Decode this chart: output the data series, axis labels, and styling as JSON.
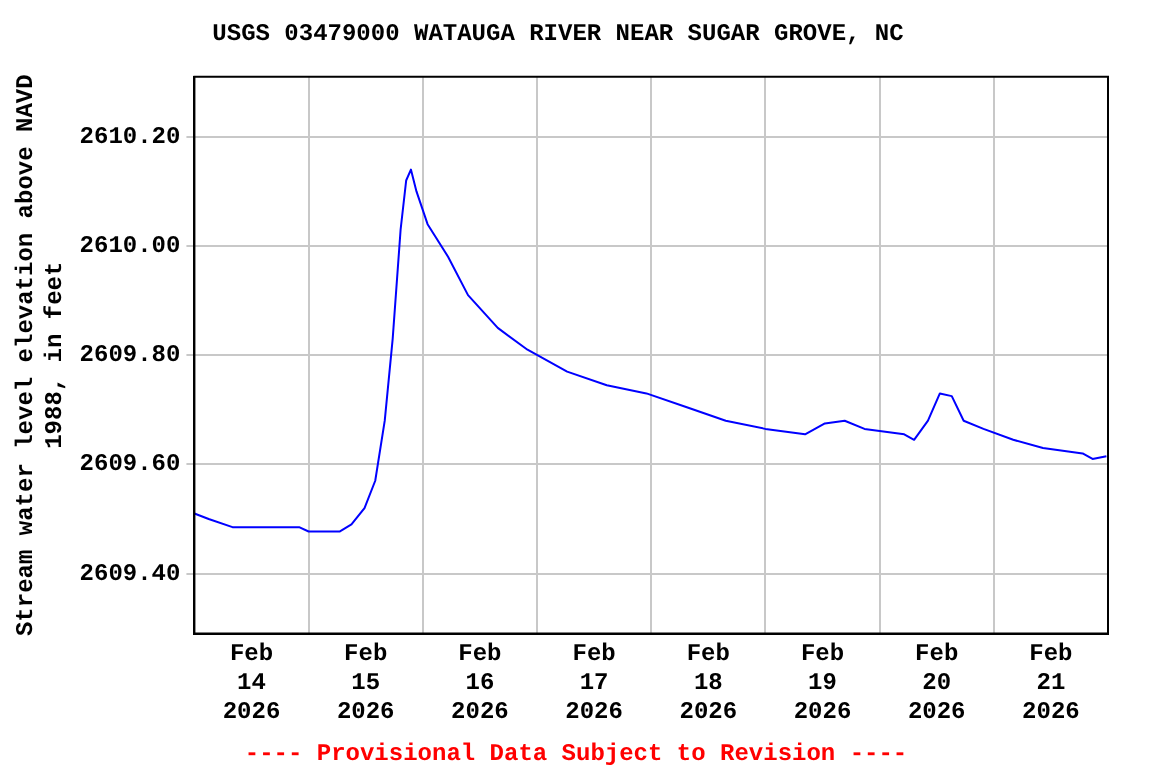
{
  "chart_data": {
    "type": "line",
    "title": "USGS 03479000 WATAUGA RIVER NEAR SUGAR GROVE, NC",
    "ylabel": "Stream water level elevation above NAVD\n1988, in feet",
    "annotations": [
      "---- Provisional Data Subject to Revision ----"
    ],
    "x": [
      "2026-02-14T00:00",
      "2026-02-14T03:00",
      "2026-02-14T08:00",
      "2026-02-14T22:00",
      "2026-02-15T00:00",
      "2026-02-15T06:30",
      "2026-02-15T09:00",
      "2026-02-15T11:45",
      "2026-02-15T14:00",
      "2026-02-15T16:00",
      "2026-02-15T17:40",
      "2026-02-15T19:20",
      "2026-02-15T20:30",
      "2026-02-15T21:30",
      "2026-02-15T22:40",
      "2026-02-16T01:00",
      "2026-02-16T05:20",
      "2026-02-16T09:30",
      "2026-02-16T15:45",
      "2026-02-16T22:00",
      "2026-02-17T06:20",
      "2026-02-17T14:40",
      "2026-02-17T23:00",
      "2026-02-18T07:20",
      "2026-02-18T15:40",
      "2026-02-19T00:00",
      "2026-02-19T08:20",
      "2026-02-19T12:30",
      "2026-02-19T16:40",
      "2026-02-19T20:50",
      "2026-02-20T05:10",
      "2026-02-20T07:15",
      "2026-02-20T10:10",
      "2026-02-20T12:40",
      "2026-02-20T15:10",
      "2026-02-20T17:40",
      "2026-02-20T21:50",
      "2026-02-21T04:05",
      "2026-02-21T10:20",
      "2026-02-21T18:40",
      "2026-02-21T20:45",
      "2026-02-21T23:40"
    ],
    "series": [
      {
        "color": "#0000ff",
        "values": [
          2609.51,
          2609.5,
          2609.485,
          2609.485,
          2609.477,
          2609.477,
          2609.49,
          2609.52,
          2609.57,
          2609.68,
          2609.83,
          2610.03,
          2610.12,
          2610.14,
          2610.1,
          2610.04,
          2609.98,
          2609.91,
          2609.85,
          2609.81,
          2609.77,
          2609.745,
          2609.73,
          2609.705,
          2609.68,
          2609.665,
          2609.655,
          2609.675,
          2609.68,
          2609.665,
          2609.655,
          2609.645,
          2609.68,
          2609.73,
          2609.725,
          2609.68,
          2609.665,
          2609.645,
          2609.63,
          2609.62,
          2609.61,
          2609.615
        ]
      }
    ],
    "xlim": [
      "2026-02-14T00:00",
      "2026-02-22T00:00"
    ],
    "xticks": [
      {
        "value": "2026-02-14T12:00",
        "label": "Feb\n14\n2026"
      },
      {
        "value": "2026-02-15T12:00",
        "label": "Feb\n15\n2026"
      },
      {
        "value": "2026-02-16T12:00",
        "label": "Feb\n16\n2026"
      },
      {
        "value": "2026-02-17T12:00",
        "label": "Feb\n17\n2026"
      },
      {
        "value": "2026-02-18T12:00",
        "label": "Feb\n18\n2026"
      },
      {
        "value": "2026-02-19T12:00",
        "label": "Feb\n19\n2026"
      },
      {
        "value": "2026-02-20T12:00",
        "label": "Feb\n20\n2026"
      },
      {
        "value": "2026-02-21T12:00",
        "label": "Feb\n21\n2026"
      },
      {
        "value": "2026-02-15T00:00",
        "label": null
      },
      {
        "value": "2026-02-16T00:00",
        "label": null
      },
      {
        "value": "2026-02-17T00:00",
        "label": null
      },
      {
        "value": "2026-02-18T00:00",
        "label": null
      },
      {
        "value": "2026-02-19T00:00",
        "label": null
      },
      {
        "value": "2026-02-20T00:00",
        "label": null
      },
      {
        "value": "2026-02-21T00:00",
        "label": null
      }
    ],
    "ylim": [
      2609.29,
      2610.31
    ],
    "yticks": [
      {
        "value": 2609.4,
        "label": "2609.40"
      },
      {
        "value": 2609.6,
        "label": "2609.60"
      },
      {
        "value": 2609.8,
        "label": "2609.80"
      },
      {
        "value": 2610.0,
        "label": "2610.00"
      },
      {
        "value": 2610.2,
        "label": "2610.20"
      }
    ],
    "grid": true,
    "legend": false,
    "marker": "none",
    "line_style": "solid"
  }
}
